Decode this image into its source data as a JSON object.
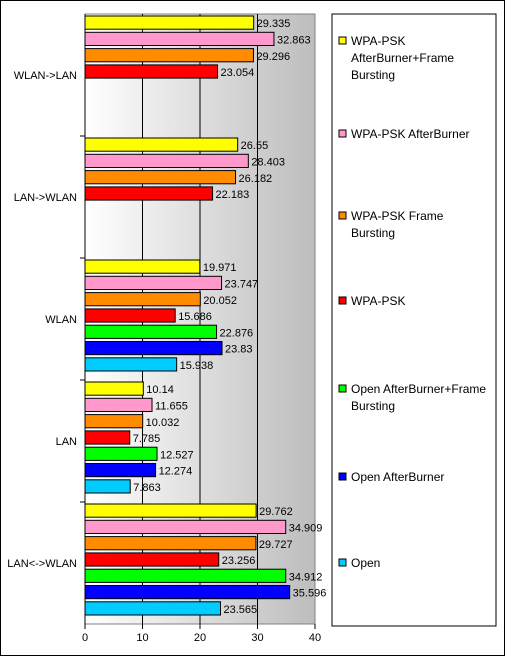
{
  "chart_data": {
    "type": "bar",
    "orientation": "horizontal",
    "categories": [
      "WLAN->LAN",
      "LAN->WLAN",
      "WLAN",
      "LAN",
      "LAN<->WLAN"
    ],
    "xlim": [
      0,
      40
    ],
    "xticks": [
      "0",
      "10",
      "20",
      "30",
      "40"
    ],
    "grid": true,
    "legend_position": "right",
    "series": [
      {
        "name": "WPA-PSK AfterBurner+Frame Bursting",
        "legend_lines": [
          "WPA-PSK",
          "AfterBurner+Frame",
          "Bursting"
        ],
        "color": "#ffff00",
        "values": [
          29.335,
          26.55,
          19.971,
          10.14,
          29.762
        ],
        "labels": [
          "29.335",
          "26.55",
          "19.971",
          "10.14",
          "29.762"
        ]
      },
      {
        "name": "WPA-PSK AfterBurner",
        "legend_lines": [
          "WPA-PSK AfterBurner"
        ],
        "color": "#ff99cc",
        "values": [
          32.863,
          28.403,
          23.747,
          11.655,
          34.909
        ],
        "labels": [
          "32.863",
          "28.403",
          "23.747",
          "11.655",
          "34.909"
        ]
      },
      {
        "name": "WPA-PSK Frame Bursting",
        "legend_lines": [
          "WPA-PSK Frame",
          "Bursting"
        ],
        "color": "#ff8c00",
        "values": [
          29.296,
          26.182,
          20.052,
          10.032,
          29.727
        ],
        "labels": [
          "29.296",
          "26.182",
          "20.052",
          "10.032",
          "29.727"
        ]
      },
      {
        "name": "WPA-PSK",
        "legend_lines": [
          "WPA-PSK"
        ],
        "color": "#ff0000",
        "values": [
          23.054,
          22.183,
          15.686,
          7.785,
          23.256
        ],
        "labels": [
          "23.054",
          "22.183",
          "15.686",
          "7.785",
          "23.256"
        ]
      },
      {
        "name": "Open AfterBurner+Frame Bursting",
        "legend_lines": [
          "Open AfterBurner+Frame",
          "Bursting"
        ],
        "color": "#00ff00",
        "values": [
          null,
          null,
          22.876,
          12.527,
          34.912
        ],
        "labels": [
          null,
          null,
          "22.876",
          "12.527",
          "34.912"
        ]
      },
      {
        "name": "Open AfterBurner",
        "legend_lines": [
          "Open AfterBurner"
        ],
        "color": "#0000ff",
        "values": [
          null,
          null,
          23.83,
          12.274,
          35.596
        ],
        "labels": [
          null,
          null,
          "23.83",
          "12.274",
          "35.596"
        ]
      },
      {
        "name": "Open",
        "legend_lines": [
          "Open"
        ],
        "color": "#00ccff",
        "values": [
          null,
          null,
          15.938,
          7.863,
          23.565
        ],
        "labels": [
          null,
          null,
          "15.938",
          "7.863",
          "23.565"
        ]
      }
    ]
  }
}
